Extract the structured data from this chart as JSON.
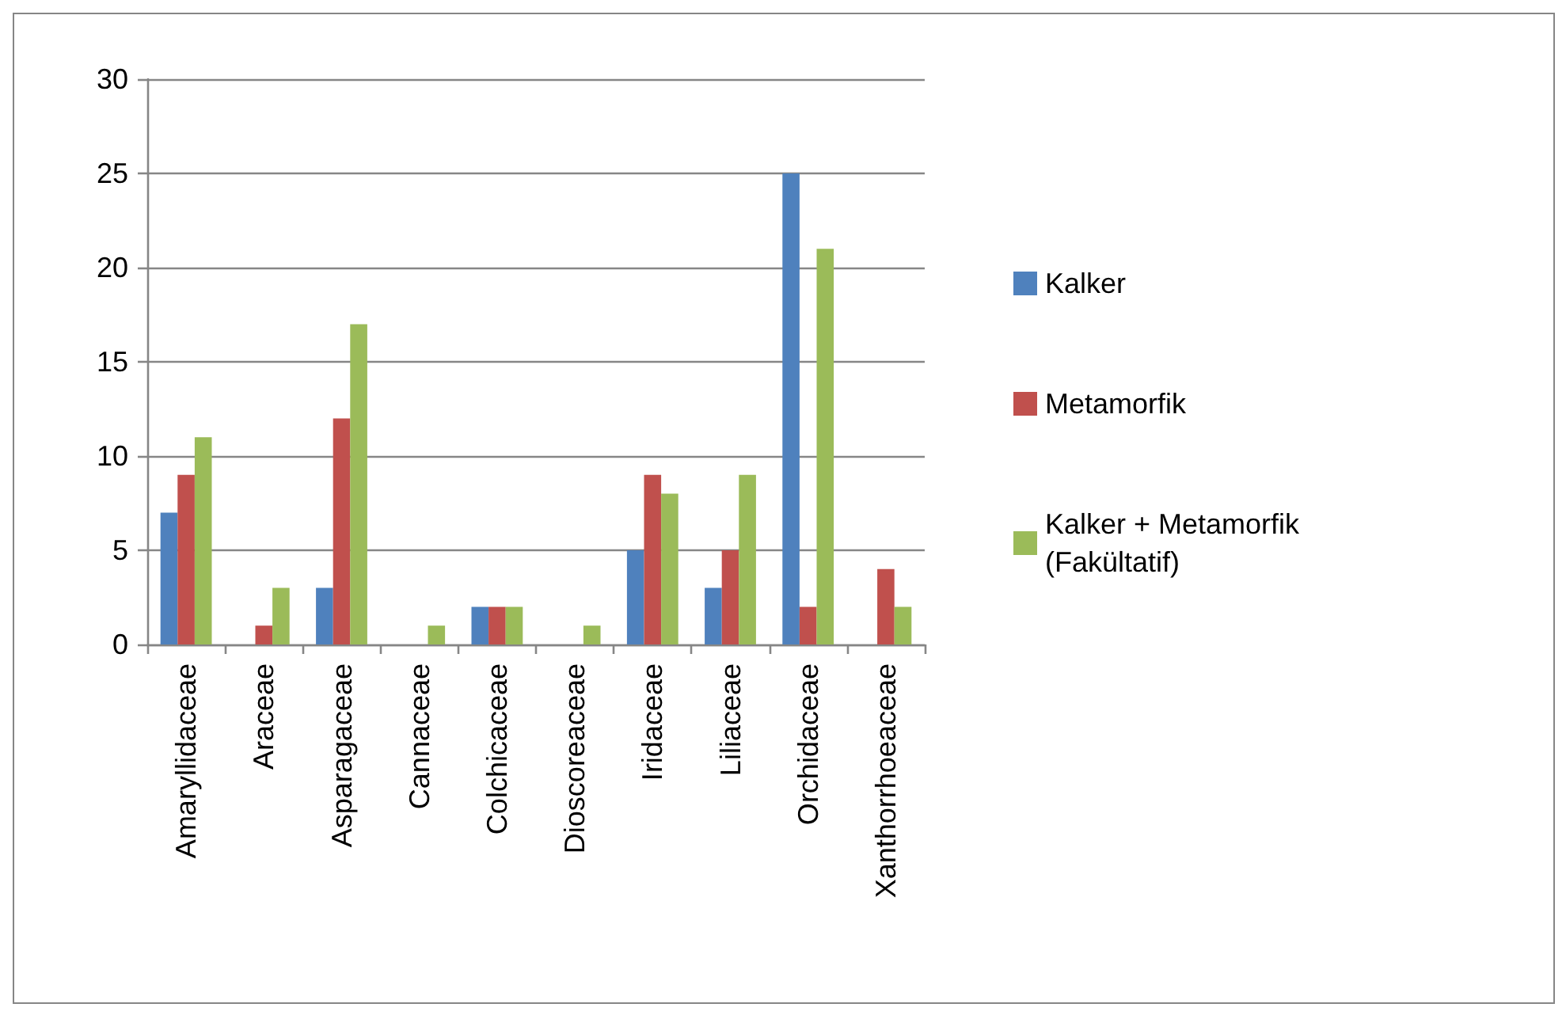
{
  "chart_data": {
    "type": "bar",
    "categories": [
      "Amaryllidaceae",
      "Araceae",
      "Asparagaceae",
      "Cannaceae",
      "Colchicaceae",
      "Dioscoreaceae",
      "Iridaceae",
      "Liliaceae",
      "Orchidaceae",
      "Xanthorrhoeaceae"
    ],
    "series": [
      {
        "name": "Kalker",
        "color": "#4f81bd",
        "values": [
          7,
          0,
          3,
          0,
          2,
          0,
          5,
          3,
          25,
          0
        ]
      },
      {
        "name": "Metamorfik",
        "color": "#c0504d",
        "values": [
          9,
          1,
          12,
          0,
          2,
          0,
          9,
          5,
          2,
          4
        ]
      },
      {
        "name": "Kalker + Metamorfik (Fakültatif)",
        "color": "#9bbb59",
        "values": [
          11,
          3,
          17,
          1,
          2,
          1,
          8,
          9,
          21,
          2
        ]
      }
    ],
    "ylim": [
      0,
      30
    ],
    "yticks": [
      0,
      5,
      10,
      15,
      20,
      25,
      30
    ],
    "grid": "y",
    "legend": "right"
  }
}
